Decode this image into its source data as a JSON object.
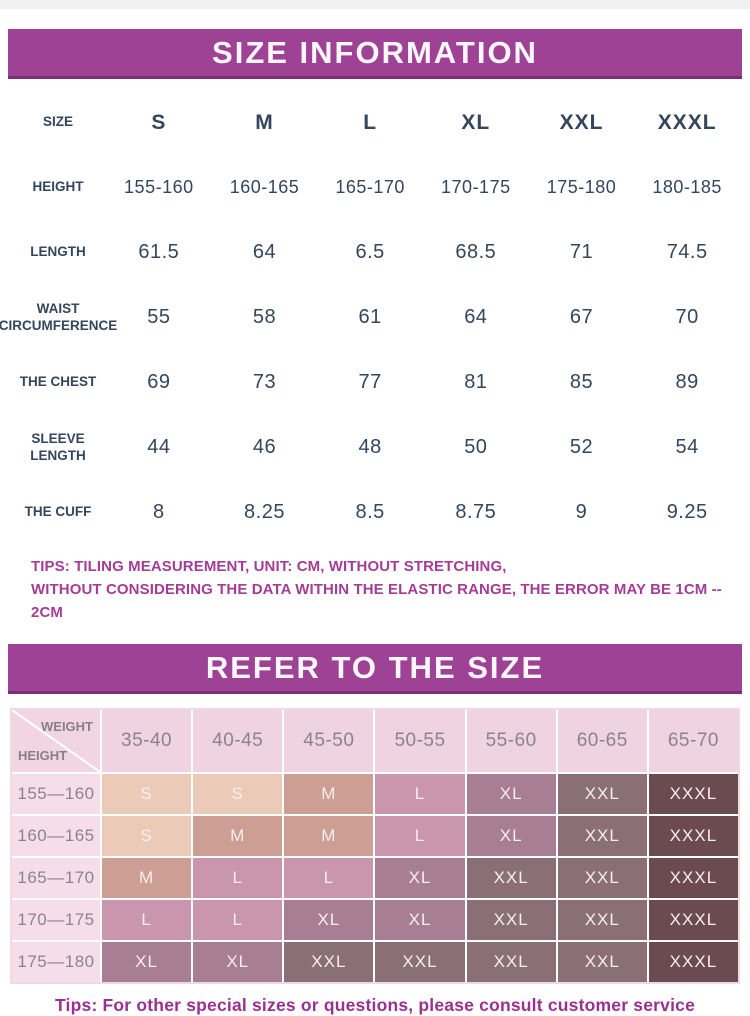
{
  "section1": {
    "title": "SIZE INFORMATION"
  },
  "section2": {
    "title": "REFER TO THE SIZE"
  },
  "tips1": {
    "line1": "TIPS: TILING MEASUREMENT, UNIT: CM, WITHOUT STRETCHING,",
    "line2": "WITHOUT CONSIDERING THE DATA WITHIN THE ELASTIC RANGE, THE ERROR MAY BE 1CM -- 2CM"
  },
  "tips2": {
    "text": "Tips: For other special sizes or questions, please consult customer service"
  },
  "size_table": {
    "rows": [
      {
        "label": "SIZE",
        "values": [
          "S",
          "M",
          "L",
          "XL",
          "XXL",
          "XXXL"
        ]
      },
      {
        "label": "HEIGHT",
        "values": [
          "155-160",
          "160-165",
          "165-170",
          "170-175",
          "175-180",
          "180-185"
        ]
      },
      {
        "label": "LENGTH",
        "values": [
          "61.5",
          "64",
          "6.5",
          "68.5",
          "71",
          "74.5"
        ]
      },
      {
        "label": "WAIST CIRCUMFERENCE",
        "values": [
          "55",
          "58",
          "61",
          "64",
          "67",
          "70"
        ]
      },
      {
        "label": "THE CHEST",
        "values": [
          "69",
          "73",
          "77",
          "81",
          "85",
          "89"
        ]
      },
      {
        "label": "SLEEVE LENGTH",
        "values": [
          "44",
          "46",
          "48",
          "50",
          "52",
          "54"
        ]
      },
      {
        "label": "THE CUFF",
        "values": [
          "8",
          "8.25",
          "8.5",
          "8.75",
          "9",
          "9.25"
        ]
      }
    ]
  },
  "size_chart": {
    "corner": {
      "top": "WEIGHT",
      "bottom": "HEIGHT"
    },
    "weight_cols": [
      "35-40",
      "40-45",
      "45-50",
      "50-55",
      "55-60",
      "60-65",
      "65-70"
    ],
    "rows": [
      {
        "height": "155—160",
        "sizes": [
          "S",
          "S",
          "M",
          "L",
          "XL",
          "XXL",
          "XXXL"
        ]
      },
      {
        "height": "160—165",
        "sizes": [
          "S",
          "M",
          "M",
          "L",
          "XL",
          "XXL",
          "XXXL"
        ]
      },
      {
        "height": "165—170",
        "sizes": [
          "M",
          "L",
          "L",
          "XL",
          "XXL",
          "XXL",
          "XXXL"
        ]
      },
      {
        "height": "170—175",
        "sizes": [
          "L",
          "L",
          "XL",
          "XL",
          "XXL",
          "XXL",
          "XXXL"
        ]
      },
      {
        "height": "175—180",
        "sizes": [
          "XL",
          "XL",
          "XXL",
          "XXL",
          "XXL",
          "XXL",
          "XXXL"
        ]
      }
    ]
  },
  "colors": {
    "banner": "#9d4294",
    "banner_border": "#7c2f78",
    "table_text": "#33465c",
    "tips_magenta": "#a53c96",
    "tips_bottom": "#9b3093",
    "grid_frame_pink": "#f3d8e3",
    "grid_header_pink": "#f0d3e0",
    "grid_label_pink": "#f5dee9",
    "sizes": {
      "S": "#ebcab8",
      "M": "#cc9e94",
      "L": "#c996ae",
      "XL": "#a87e94",
      "XXL": "#8a7076",
      "XXXL": "#6b4a50"
    }
  }
}
